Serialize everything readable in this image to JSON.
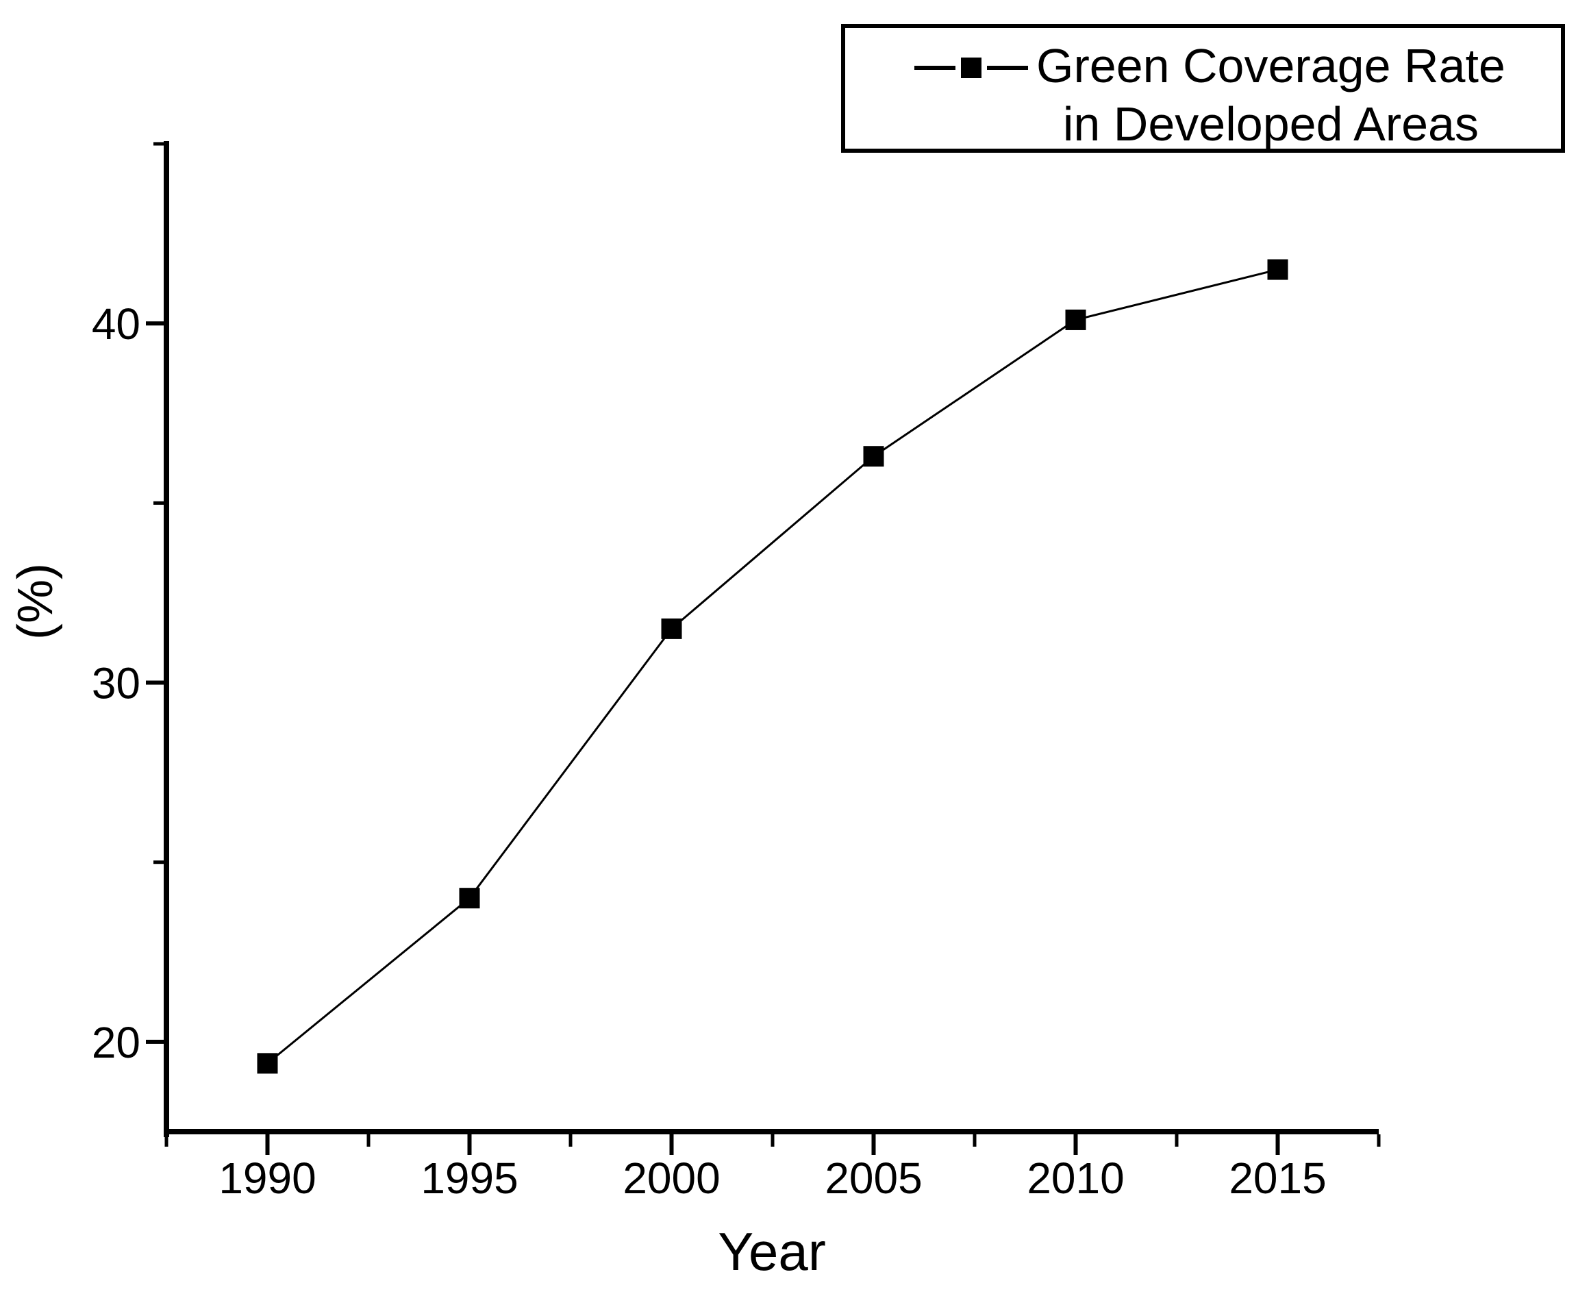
{
  "chart_data": {
    "type": "line",
    "x": [
      1990,
      1995,
      2000,
      2005,
      2010,
      2015
    ],
    "series": [
      {
        "name": "Green Coverage Rate in Developed Areas",
        "values": [
          19.4,
          24.0,
          31.5,
          36.3,
          40.1,
          41.5
        ],
        "color": "#000000",
        "marker": "filled-square",
        "line_style": "solid"
      }
    ],
    "xlabel": "Year",
    "ylabel": "(%)",
    "xlim": [
      1987.5,
      2017.5
    ],
    "ylim": [
      17.5,
      45
    ],
    "x_major_ticks": [
      1990,
      1995,
      2000,
      2005,
      2010,
      2015
    ],
    "x_minor_ticks": [
      1987.5,
      1992.5,
      1997.5,
      2002.5,
      2007.5,
      2012.5,
      2017.5
    ],
    "y_major_ticks": [
      20,
      30,
      40
    ],
    "y_minor_ticks": [
      25,
      35,
      45
    ],
    "grid": false,
    "legend": {
      "position": "top-right",
      "framed": true,
      "lines": [
        "Green Coverage Rate",
        "in Developed Areas"
      ]
    }
  },
  "colors": {
    "axis": "#000000",
    "text": "#000000",
    "series": "#000000",
    "background": "#ffffff"
  }
}
